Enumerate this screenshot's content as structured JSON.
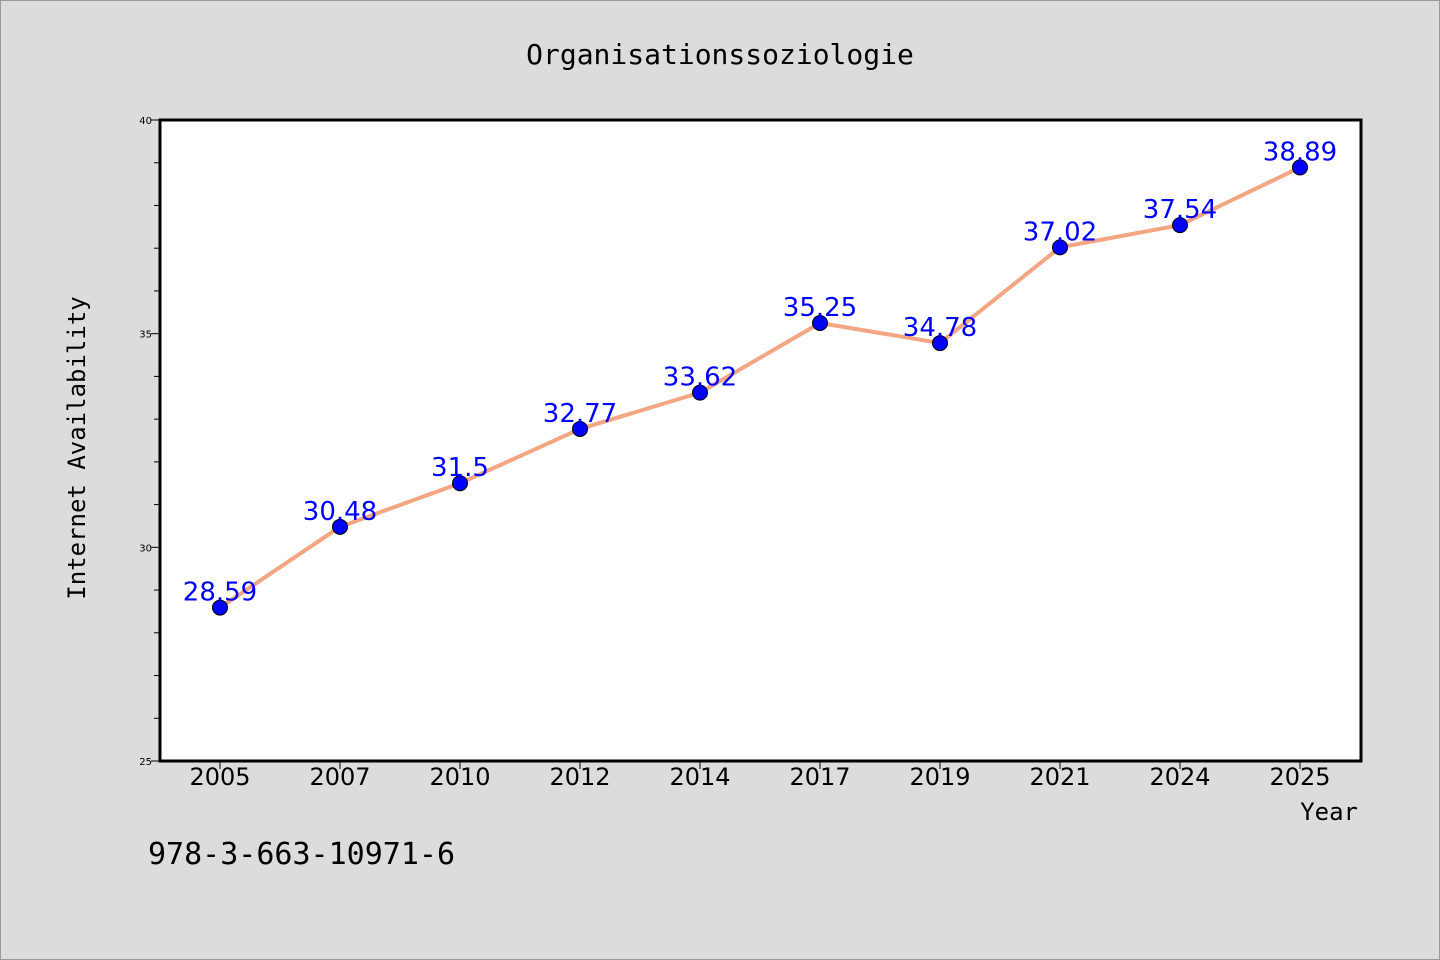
{
  "footer": {
    "isbn": "978-3-663-10971-6"
  },
  "colors": {
    "line": "#f4a582",
    "marker": "#0000ff",
    "label": "#0000ff"
  },
  "chart_data": {
    "type": "line",
    "title": "Organisationssoziologie",
    "xlabel": "Year",
    "ylabel": "Internet Availability",
    "categories": [
      "2005",
      "2007",
      "2010",
      "2012",
      "2014",
      "2017",
      "2019",
      "2021",
      "2024",
      "2025"
    ],
    "values": [
      28.59,
      30.48,
      31.5,
      32.77,
      33.62,
      35.25,
      34.78,
      37.02,
      37.54,
      38.89
    ],
    "data_labels": [
      "28.59",
      "30.48",
      "31.5",
      "32.77",
      "33.62",
      "35.25",
      "34.78",
      "37.02",
      "37.54",
      "38.89"
    ],
    "ylim": [
      25,
      40
    ],
    "y_major_ticks": [
      25,
      30,
      35,
      40
    ],
    "y_minor_step": 1,
    "grid": false,
    "legend": "none"
  }
}
